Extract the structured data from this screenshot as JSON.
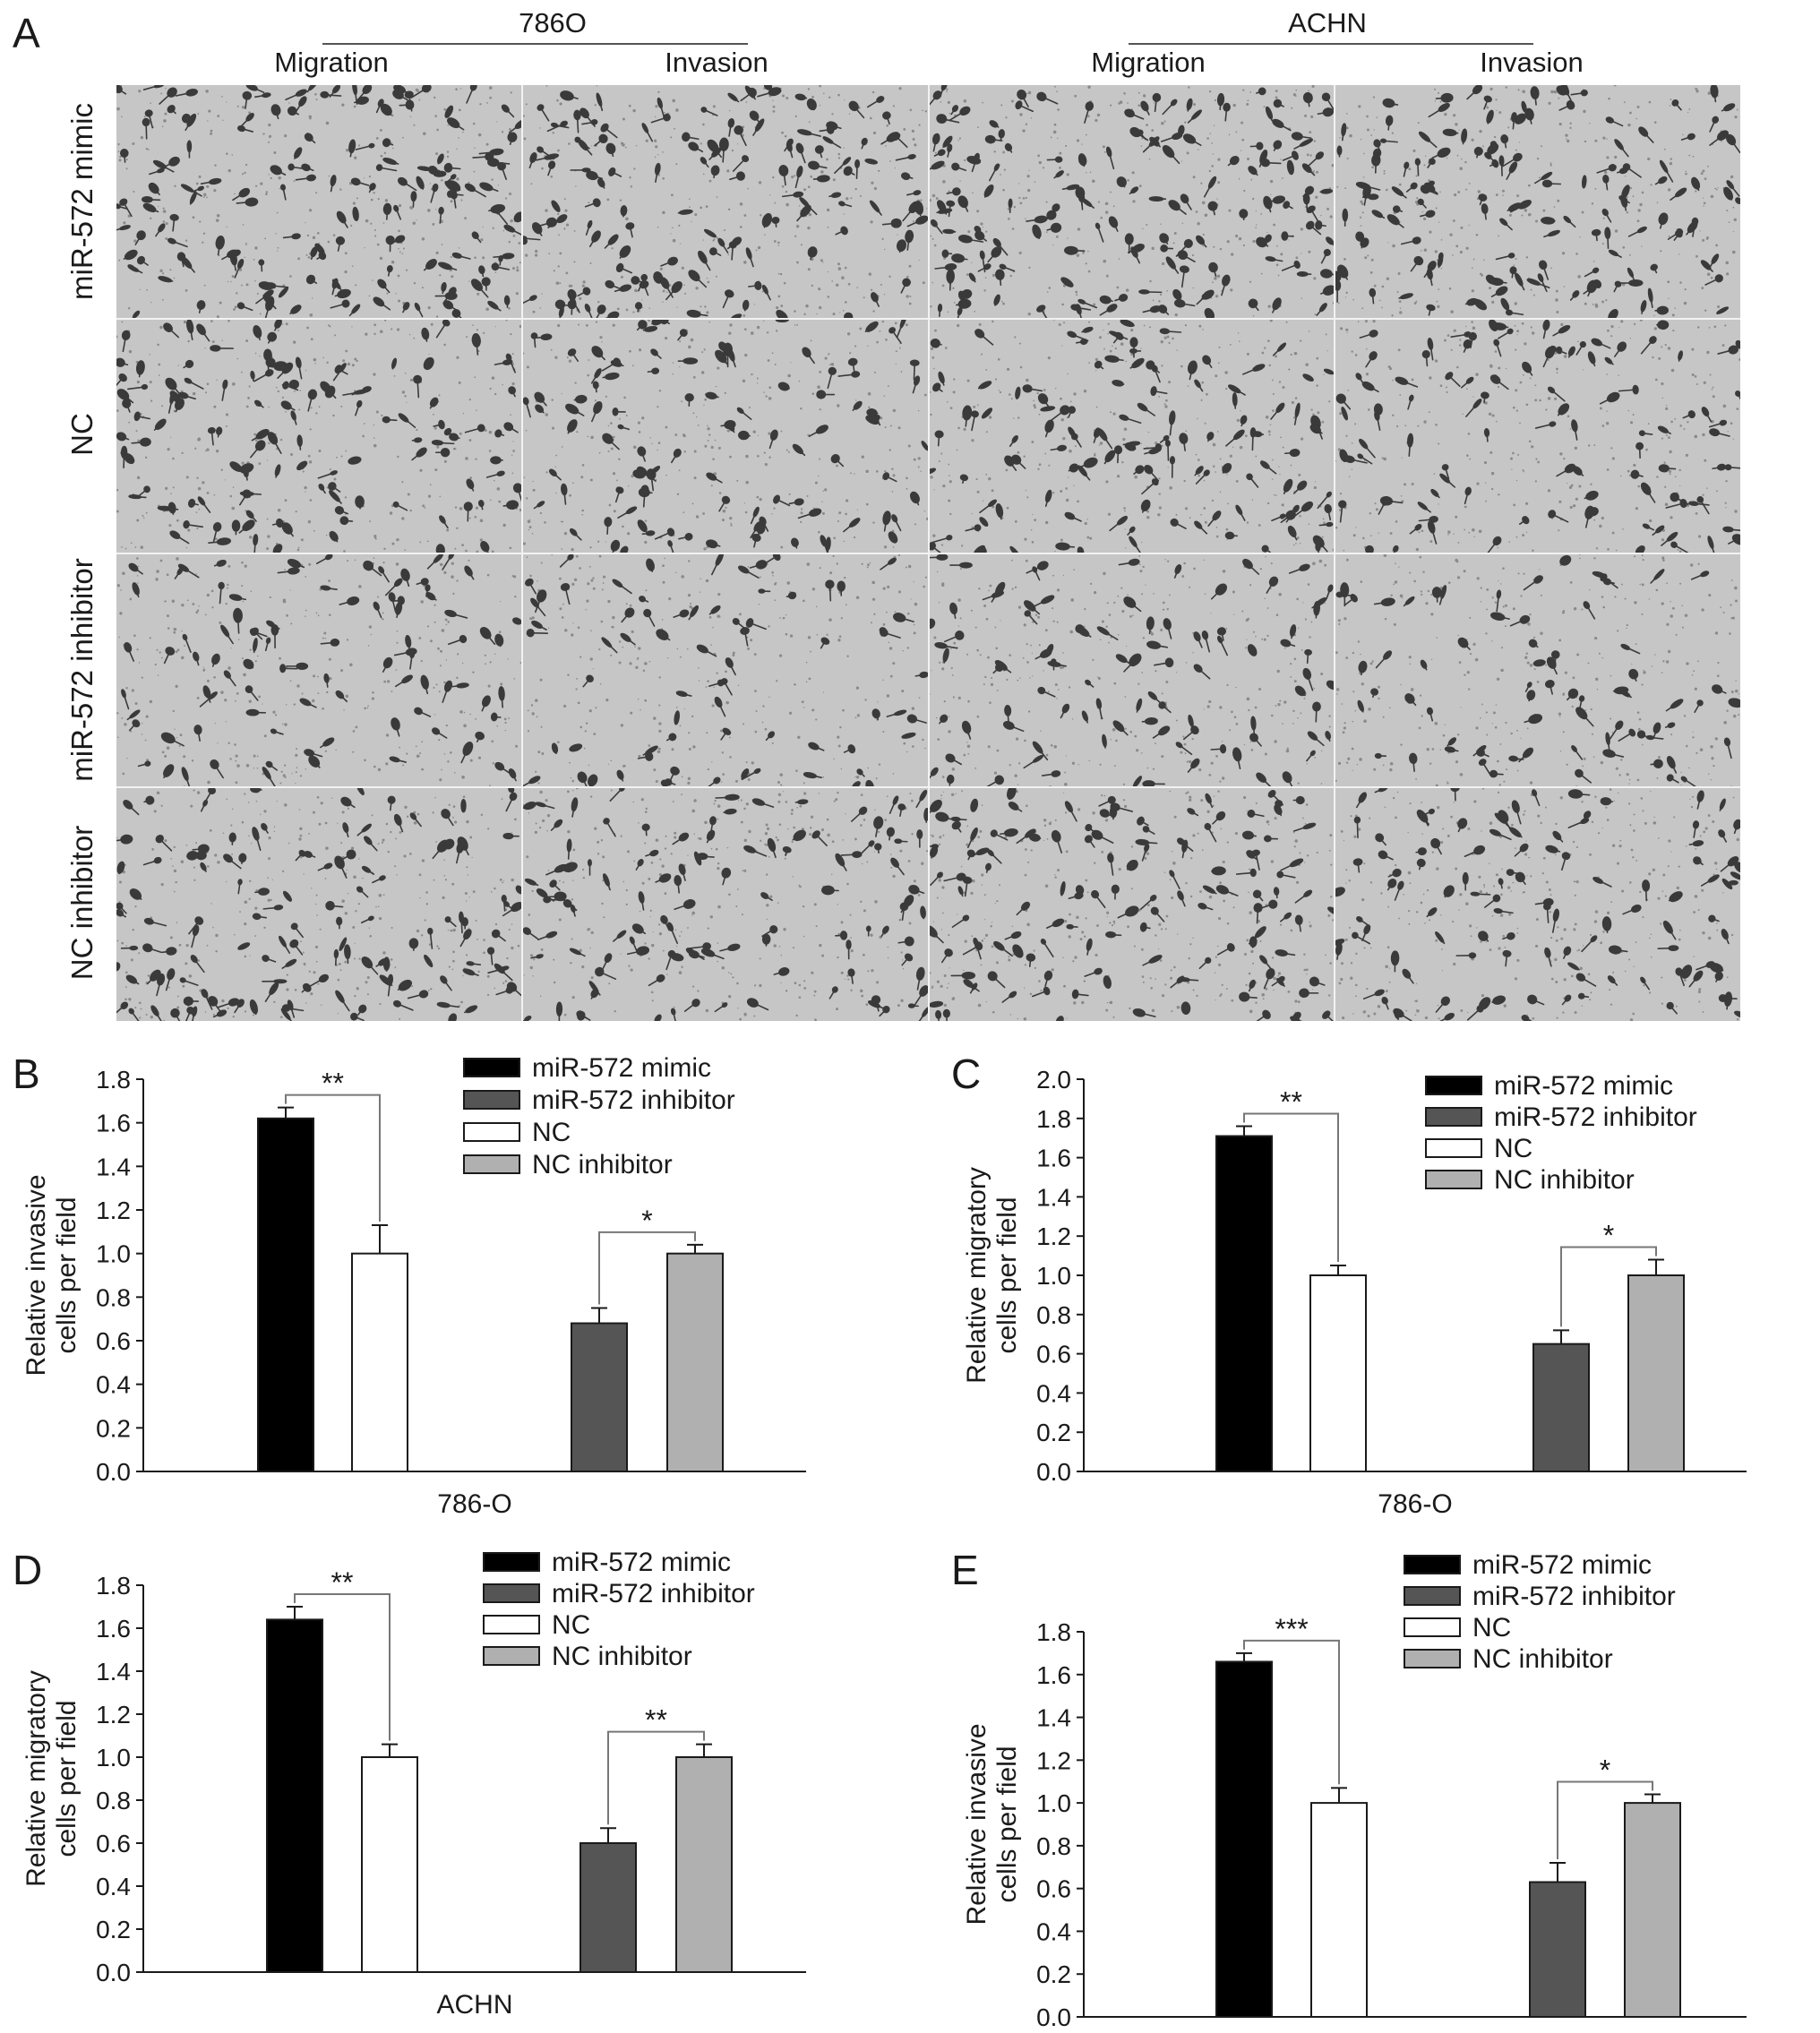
{
  "figure": {
    "panel_a": {
      "letter": "A",
      "cell_lines": [
        {
          "name": "786O",
          "columns": [
            "Migration",
            "Invasion"
          ]
        },
        {
          "name": "ACHN",
          "columns": [
            "Migration",
            "Invasion"
          ]
        }
      ],
      "rows": [
        "miR-572 mimic",
        "NC",
        "miR-572 inhibitor",
        "NC inhibitor"
      ],
      "image_colors": {
        "stain": "#3a3a3a",
        "membrane": "#c6c6c6",
        "pore": "#5a5a5a"
      }
    },
    "legend_labels": [
      "miR-572 mimic",
      "miR-572 inhibitor",
      "NC",
      "NC inhibitor"
    ],
    "bar_colors": {
      "miR-572 mimic": "#000000",
      "miR-572 inhibitor": "#555555",
      "NC": "#ffffff",
      "NC inhibitor": "#b0b0b0"
    }
  },
  "chart_data": [
    {
      "panel": "B",
      "type": "bar",
      "ylabel": [
        "Relative invasive",
        "cells per field"
      ],
      "xlabel": "786-O",
      "ylim": [
        0,
        1.8
      ],
      "ytick_step": 0.2,
      "ytick_decimals": 1,
      "series": [
        {
          "name": "miR-572 mimic",
          "value": 1.62,
          "error": 0.05
        },
        {
          "name": "NC",
          "value": 1.0,
          "error": 0.13
        },
        {
          "name": "miR-572 inhibitor",
          "value": 0.68,
          "error": 0.07
        },
        {
          "name": "NC inhibitor",
          "value": 1.0,
          "error": 0.04
        }
      ],
      "significance": [
        {
          "between": [
            "miR-572 mimic",
            "NC"
          ],
          "label": "**"
        },
        {
          "between": [
            "miR-572 inhibitor",
            "NC inhibitor"
          ],
          "label": "*"
        }
      ],
      "legend": "top-right"
    },
    {
      "panel": "C",
      "type": "bar",
      "ylabel": [
        "Relative migratory",
        "cells per field"
      ],
      "xlabel": "786-O",
      "ylim": [
        0,
        2.0
      ],
      "ytick_step": 0.2,
      "ytick_decimals": 1,
      "series": [
        {
          "name": "miR-572 mimic",
          "value": 1.71,
          "error": 0.05
        },
        {
          "name": "NC",
          "value": 1.0,
          "error": 0.05
        },
        {
          "name": "miR-572 inhibitor",
          "value": 0.65,
          "error": 0.07
        },
        {
          "name": "NC inhibitor",
          "value": 1.0,
          "error": 0.08
        }
      ],
      "significance": [
        {
          "between": [
            "miR-572 mimic",
            "NC"
          ],
          "label": "**"
        },
        {
          "between": [
            "miR-572 inhibitor",
            "NC inhibitor"
          ],
          "label": "*"
        }
      ],
      "legend": "top-right"
    },
    {
      "panel": "D",
      "type": "bar",
      "ylabel": [
        "Relative migratory",
        "cells per field"
      ],
      "xlabel": "ACHN",
      "ylim": [
        0,
        1.8
      ],
      "ytick_step": 0.2,
      "ytick_decimals": 1,
      "series": [
        {
          "name": "miR-572 mimic",
          "value": 1.64,
          "error": 0.06
        },
        {
          "name": "NC",
          "value": 1.0,
          "error": 0.06
        },
        {
          "name": "miR-572 inhibitor",
          "value": 0.6,
          "error": 0.07
        },
        {
          "name": "NC inhibitor",
          "value": 1.0,
          "error": 0.06
        }
      ],
      "significance": [
        {
          "between": [
            "miR-572 mimic",
            "NC"
          ],
          "label": "**"
        },
        {
          "between": [
            "miR-572 inhibitor",
            "NC inhibitor"
          ],
          "label": "**"
        }
      ],
      "legend": "top-right"
    },
    {
      "panel": "E",
      "type": "bar",
      "ylabel": [
        "Relative invasive",
        "cells per field"
      ],
      "xlabel": "ACHN",
      "ylim": [
        0,
        1.8
      ],
      "ytick_step": 0.2,
      "ytick_decimals": 1,
      "series": [
        {
          "name": "miR-572 mimic",
          "value": 1.66,
          "error": 0.04
        },
        {
          "name": "NC",
          "value": 1.0,
          "error": 0.07
        },
        {
          "name": "miR-572 inhibitor",
          "value": 0.63,
          "error": 0.09
        },
        {
          "name": "NC inhibitor",
          "value": 1.0,
          "error": 0.04
        }
      ],
      "significance": [
        {
          "between": [
            "miR-572 mimic",
            "NC"
          ],
          "label": "***"
        },
        {
          "between": [
            "miR-572 inhibitor",
            "NC inhibitor"
          ],
          "label": "*"
        }
      ],
      "legend": "top-right"
    }
  ]
}
